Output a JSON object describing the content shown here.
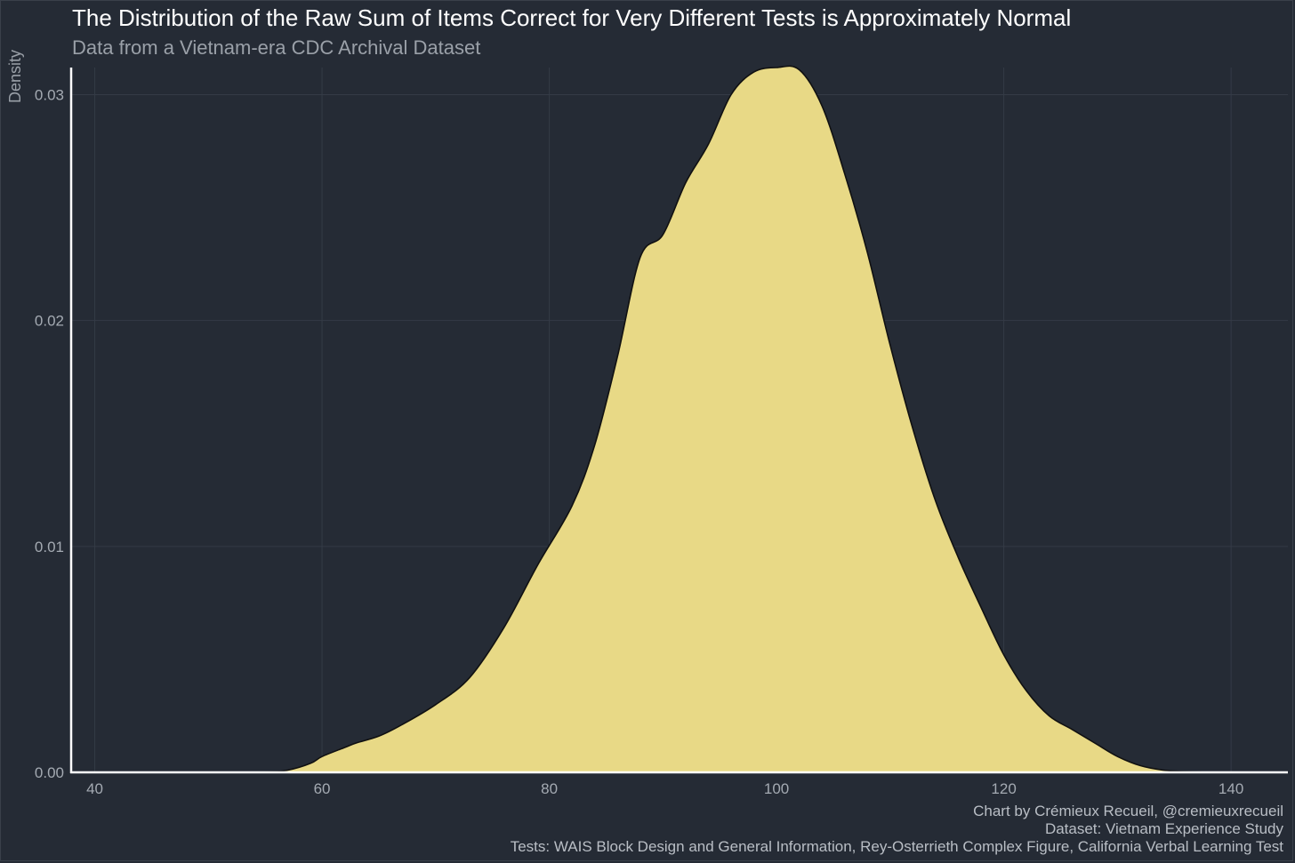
{
  "chart_data": {
    "type": "area",
    "title": "The Distribution of the Raw Sum of Items Correct for Very Different Tests is Approximately Normal",
    "subtitle": "Data from a Vietnam-era CDC Archival Dataset",
    "xlabel": "",
    "ylabel": "Density",
    "xlim": [
      38,
      145
    ],
    "ylim": [
      0,
      0.0312
    ],
    "xticks": [
      40,
      60,
      80,
      100,
      120,
      140
    ],
    "xtick_labels": [
      "40",
      "60",
      "80",
      "100",
      "120",
      "140"
    ],
    "yticks": [
      0,
      0.01,
      0.02,
      0.03
    ],
    "ytick_labels": [
      "0.00",
      "0.01",
      "0.02",
      "0.03"
    ],
    "grid": true,
    "fill_color": "#e8d986",
    "line_color": "#111111",
    "background_color": "#252b35",
    "x": [
      40,
      50,
      55,
      57,
      59,
      60,
      62,
      63,
      65,
      67,
      70,
      73,
      76,
      79,
      82,
      84,
      86,
      88,
      90,
      92,
      94,
      96,
      98,
      100,
      102,
      104,
      106,
      108,
      110,
      112,
      114,
      116,
      118,
      120,
      122,
      124,
      126,
      128,
      130,
      132,
      134,
      136,
      138,
      140
    ],
    "y": [
      0,
      0,
      2e-05,
      0.0001,
      0.0004,
      0.0007,
      0.0011,
      0.0013,
      0.0016,
      0.0021,
      0.003,
      0.0042,
      0.0064,
      0.0092,
      0.0118,
      0.0145,
      0.0184,
      0.0228,
      0.0238,
      0.0261,
      0.0278,
      0.03,
      0.031,
      0.0312,
      0.0311,
      0.0295,
      0.0265,
      0.023,
      0.0189,
      0.0152,
      0.012,
      0.0095,
      0.0073,
      0.0052,
      0.0036,
      0.0025,
      0.0019,
      0.0013,
      0.0007,
      0.0003,
      0.0001,
      3e-05,
      5e-06,
      0
    ]
  },
  "captions": {
    "line1": "Chart by Crémieux Recueil, @cremieuxrecueil",
    "line2": "Dataset: Vietnam Experience Study",
    "line3": "Tests: WAIS Block Design and General Information, Rey-Osterrieth Complex Figure, California Verbal Learning Test"
  }
}
